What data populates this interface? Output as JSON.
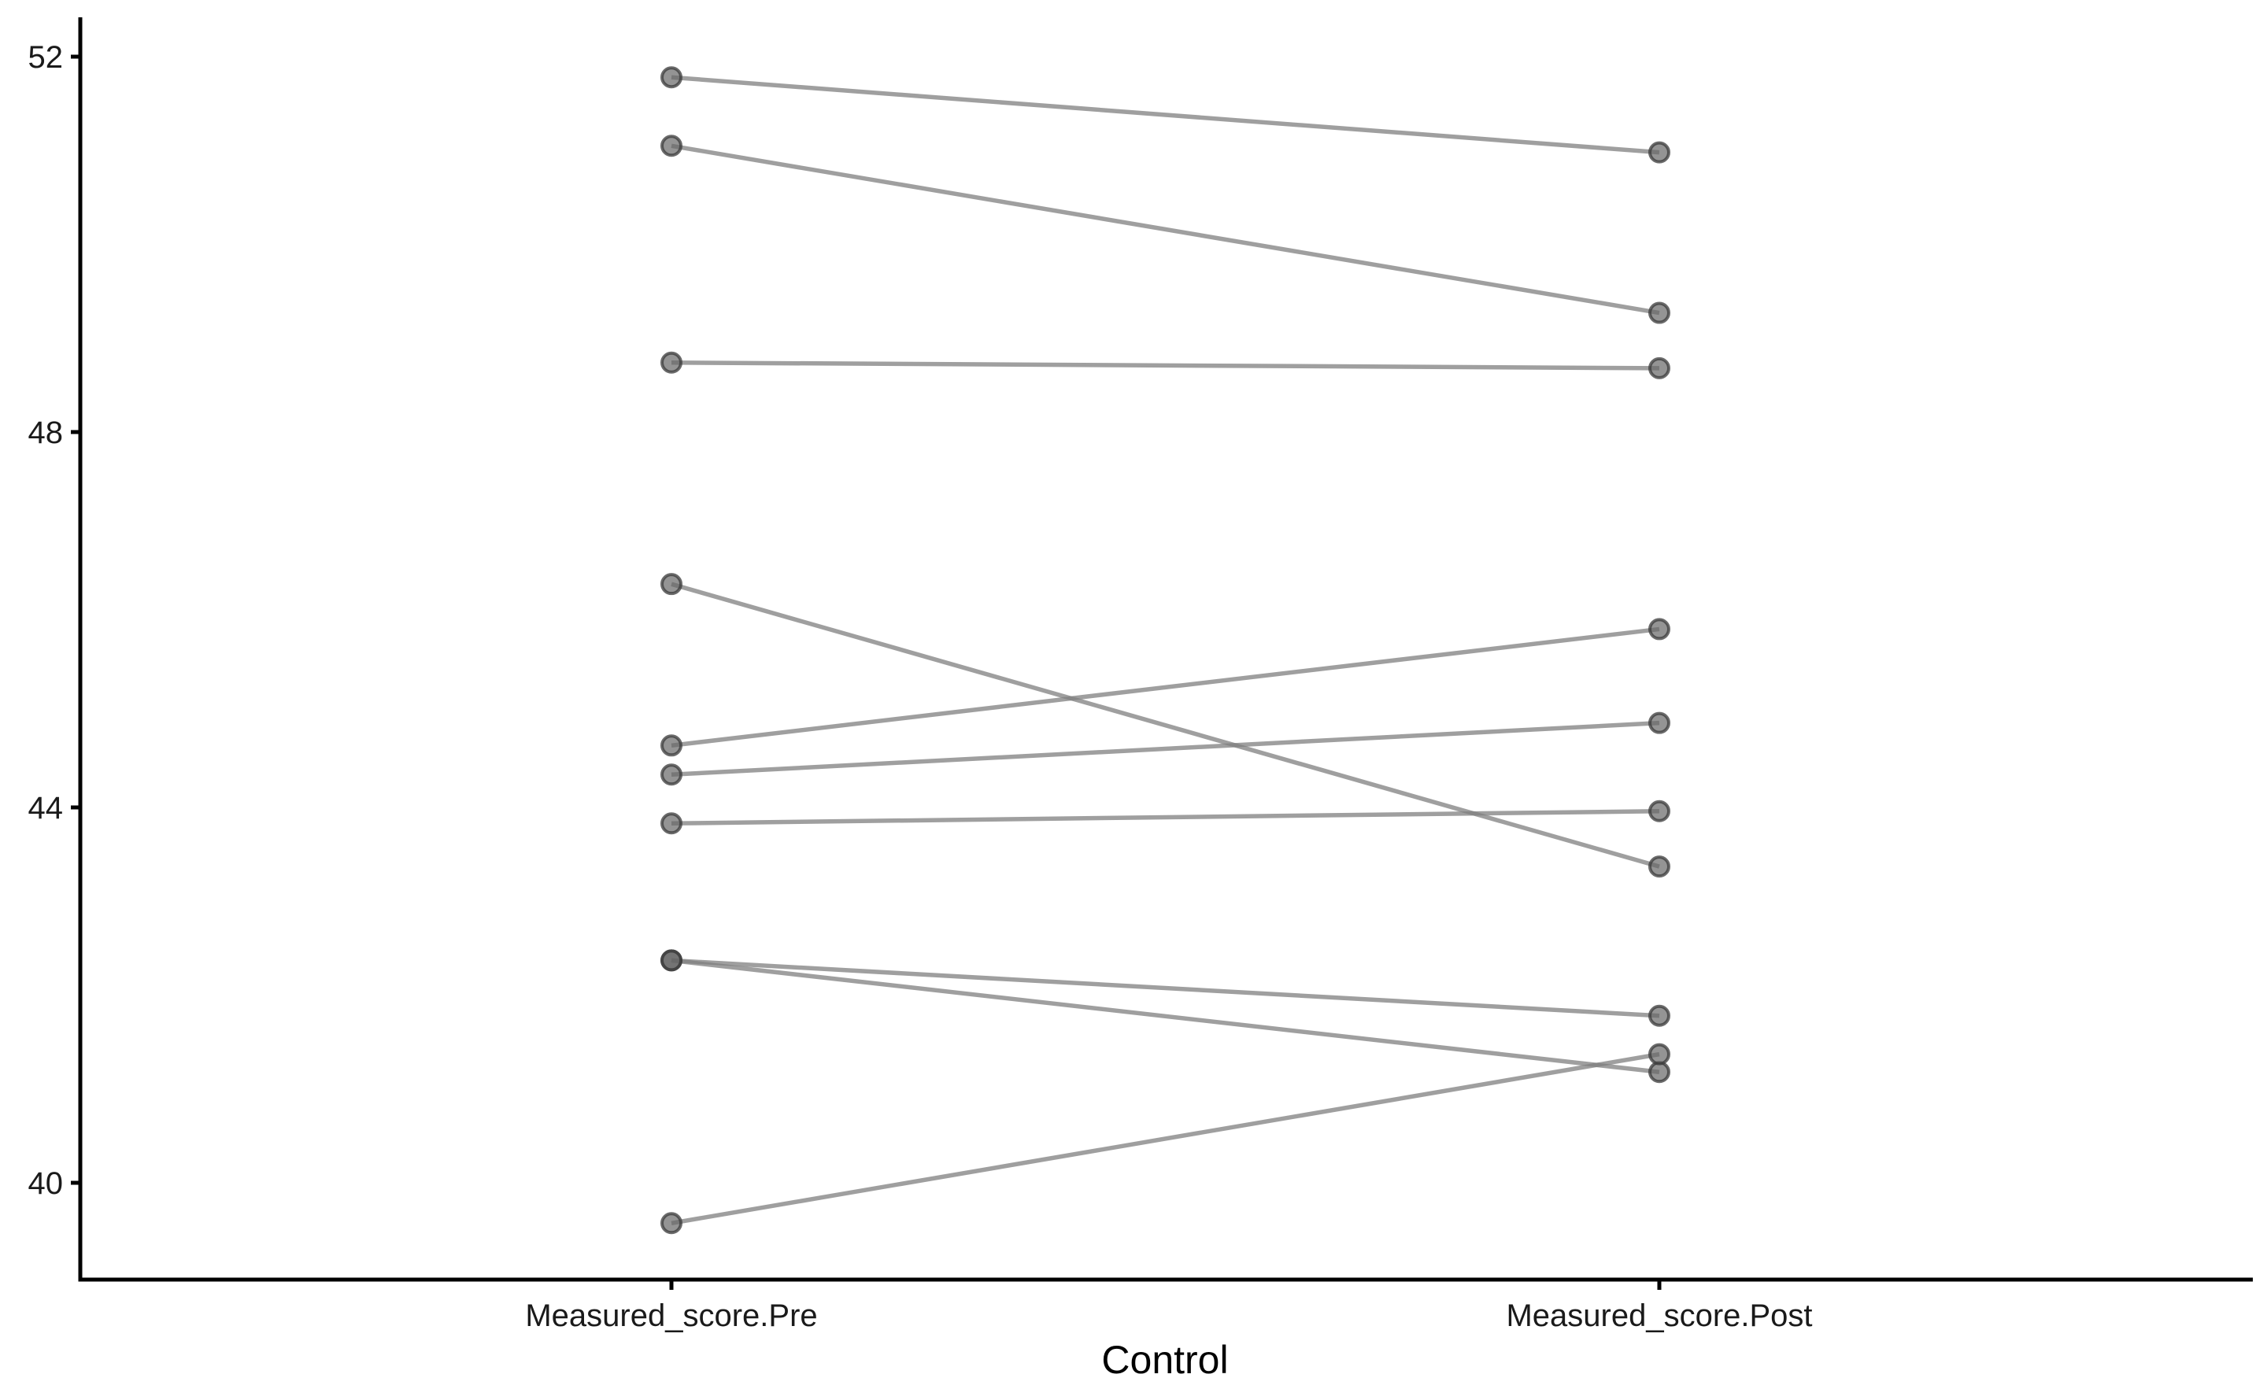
{
  "chart_data": {
    "type": "line",
    "title": "",
    "xlabel": "Control",
    "ylabel": "",
    "categories": [
      "Measured_score.Pre",
      "Measured_score.Post"
    ],
    "ylim": [
      39,
      52.4
    ],
    "yticks": [
      40,
      44,
      48,
      52
    ],
    "grid": false,
    "legend": "none",
    "series": [
      {
        "values": [
          51.78,
          50.98
        ]
      },
      {
        "values": [
          51.05,
          49.27
        ]
      },
      {
        "values": [
          48.74,
          48.68
        ]
      },
      {
        "values": [
          46.38,
          43.37
        ]
      },
      {
        "values": [
          44.66,
          45.9
        ]
      },
      {
        "values": [
          44.35,
          44.9
        ]
      },
      {
        "values": [
          43.83,
          43.96
        ]
      },
      {
        "values": [
          42.37,
          41.78
        ]
      },
      {
        "values": [
          42.37,
          41.18
        ]
      },
      {
        "values": [
          39.57,
          41.37
        ]
      }
    ],
    "colors": {
      "line": "#7f7f7f",
      "point_fill": "#666666",
      "point_stroke": "#3a3a3a",
      "axis": "#000000"
    }
  }
}
